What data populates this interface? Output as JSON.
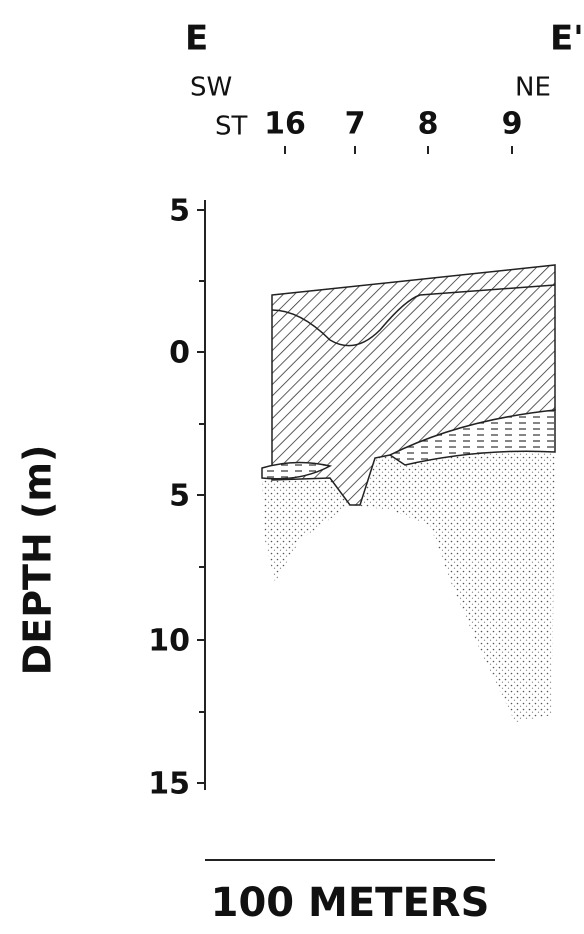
{
  "header": {
    "left_label": "E",
    "right_label": "E'",
    "left_direction": "SW",
    "right_direction": "NE"
  },
  "stations": {
    "prefix": "ST",
    "labels": [
      "16",
      "7",
      "8",
      "9"
    ]
  },
  "axis": {
    "label": "DEPTH (m)",
    "tick_labels": [
      "5",
      "0",
      "5",
      "10",
      "15"
    ]
  },
  "scale_bar": {
    "label": "100 METERS"
  }
}
